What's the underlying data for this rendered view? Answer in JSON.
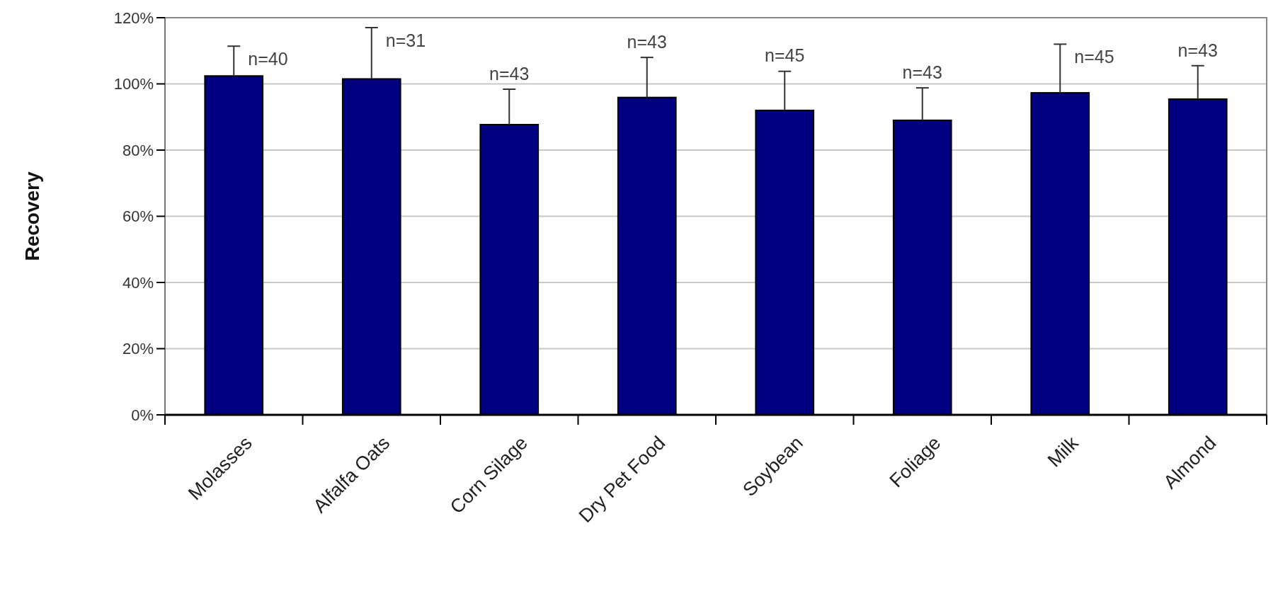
{
  "chart_data": {
    "type": "bar",
    "ylabel": "Recovery",
    "categories": [
      "Molasses",
      "Alfalfa Oats",
      "Corn Silage",
      "Dry Pet Food",
      "Soybean",
      "Foliage",
      "Milk",
      "Almond"
    ],
    "values": [
      102.4,
      101.5,
      87.7,
      95.9,
      92.0,
      89.0,
      97.3,
      95.4
    ],
    "errors": [
      [
        102.4,
        111.4
      ],
      [
        101.5,
        117.0
      ],
      [
        87.7,
        98.4
      ],
      [
        95.9,
        108.0
      ],
      [
        92.0,
        103.8
      ],
      [
        89.0,
        98.8
      ],
      [
        97.3,
        112.0
      ],
      [
        95.4,
        105.5
      ]
    ],
    "color": "#000080",
    "ylim": [
      0,
      120
    ],
    "yticks": [
      {
        "value": 0,
        "label": "0%"
      },
      {
        "value": 20,
        "label": "20%"
      },
      {
        "value": 40,
        "label": "40%"
      },
      {
        "value": 60,
        "label": "60%"
      },
      {
        "value": 80,
        "label": "80%"
      },
      {
        "value": 100,
        "label": "100%"
      },
      {
        "value": 120,
        "label": "120%"
      }
    ],
    "grid": "y",
    "annotations": [
      "n=40",
      "n=31",
      "n=43",
      "n=43",
      "n=45",
      "n=43",
      "n=45",
      "n=43"
    ]
  }
}
